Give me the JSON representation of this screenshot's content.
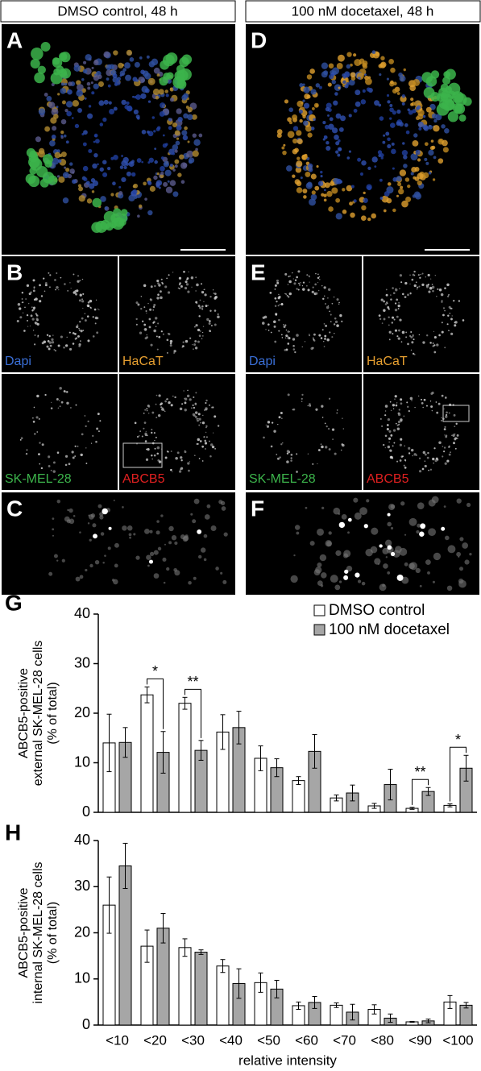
{
  "panels": {
    "headers": [
      "DMSO control, 48 h",
      "100 nM docetaxel, 48 h"
    ],
    "letters": [
      "A",
      "B",
      "C",
      "D",
      "E",
      "F"
    ],
    "channels": [
      [
        "Dapi",
        "HaCaT",
        "SK-MEL-28",
        "ABCB5"
      ],
      [
        "Dapi",
        "HaCaT",
        "SK-MEL-28",
        "ABCB5"
      ]
    ]
  },
  "chart_data": [
    {
      "type": "bar",
      "panel_label": "G",
      "ylabel": [
        "ABCB5-positive",
        "external SK-MEL-28 cells",
        "(% of total)"
      ],
      "ylim": [
        0,
        40
      ],
      "yticks": [
        0,
        10,
        20,
        30,
        40
      ],
      "series": [
        {
          "name": "DMSO control",
          "color": "#ffffff",
          "values": [
            14.0,
            23.7,
            22.0,
            16.2,
            10.9,
            6.4,
            2.9,
            1.3,
            0.8,
            1.4
          ],
          "errors": [
            5.8,
            1.6,
            1.2,
            3.5,
            2.5,
            0.8,
            0.6,
            0.5,
            0.2,
            0.3
          ]
        },
        {
          "name": "100 nM docetaxel",
          "color": "#a6a6a6",
          "values": [
            14.1,
            12.1,
            12.5,
            17.1,
            9.0,
            12.3,
            3.9,
            5.6,
            4.2,
            8.9
          ],
          "errors": [
            3.0,
            4.2,
            2.0,
            3.3,
            1.8,
            3.4,
            1.6,
            3.1,
            0.8,
            2.6
          ]
        }
      ],
      "significance": [
        null,
        "*",
        "**",
        null,
        null,
        null,
        null,
        null,
        "**",
        "*"
      ]
    },
    {
      "type": "bar",
      "panel_label": "H",
      "ylabel": [
        "ABCB5-positive",
        "internal SK-MEL-28 cells",
        "(% of total)"
      ],
      "categories": [
        "<10",
        "<20",
        "<30",
        "<40",
        "<50",
        "<60",
        "<70",
        "<80",
        "<90",
        "<100"
      ],
      "xlabel": "relative intensity",
      "ylim": [
        0,
        40
      ],
      "yticks": [
        0,
        10,
        20,
        30,
        40
      ],
      "series": [
        {
          "color": "#ffffff",
          "values": [
            26.0,
            17.1,
            16.8,
            12.8,
            9.2,
            4.2,
            4.3,
            3.4,
            0.7,
            5.0
          ],
          "errors": [
            6.1,
            3.5,
            1.9,
            1.4,
            2.1,
            0.8,
            0.5,
            1.0,
            0.1,
            1.4
          ]
        },
        {
          "color": "#a6a6a6",
          "values": [
            34.5,
            21.0,
            15.8,
            9.0,
            7.8,
            4.9,
            2.8,
            1.5,
            0.9,
            4.3
          ],
          "errors": [
            4.9,
            3.2,
            0.5,
            3.2,
            1.9,
            1.3,
            1.7,
            0.9,
            0.4,
            0.6
          ]
        }
      ]
    }
  ]
}
